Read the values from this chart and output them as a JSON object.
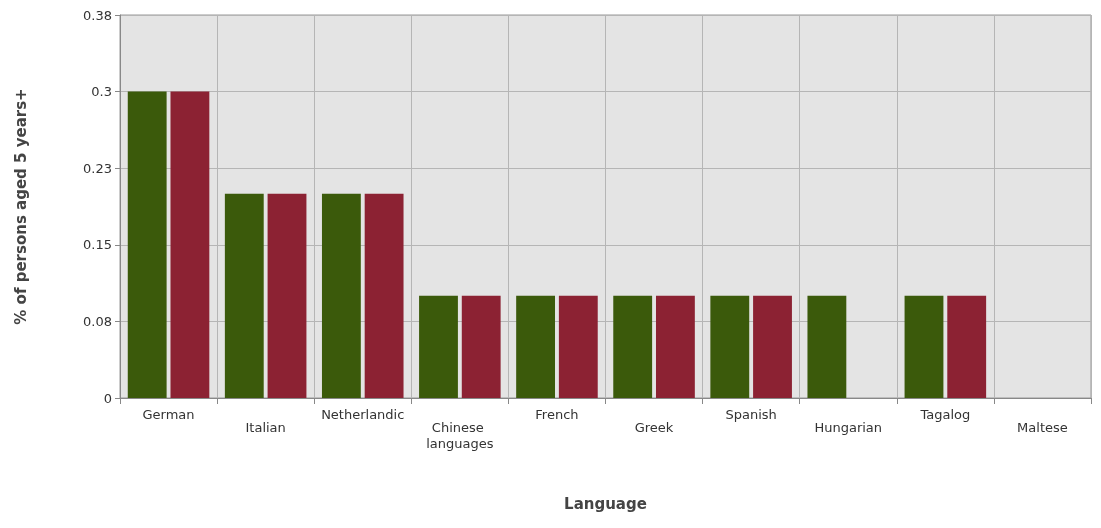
{
  "chart_data": {
    "type": "bar",
    "xlabel": "Language",
    "ylabel": "% of persons aged 5 years+",
    "categories": [
      "German",
      "Italian",
      "Netherlandic",
      "Chinese languages",
      "French",
      "Greek",
      "Spanish",
      "Hungarian",
      "Tagalog",
      "Maltese"
    ],
    "series": [
      {
        "color": "#3b5a0b",
        "values": [
          0.3,
          0.2,
          0.2,
          0.1,
          0.1,
          0.1,
          0.1,
          0.1,
          0.1,
          0
        ]
      },
      {
        "color": "#8c2233",
        "values": [
          0.3,
          0.2,
          0.2,
          0.1,
          0.1,
          0.1,
          0.1,
          0,
          0.1,
          0
        ]
      }
    ],
    "ylim": [
      0,
      0.375
    ],
    "yticks": [
      0,
      {
        "value": 0.075,
        "label": "0.08"
      },
      0.15,
      {
        "value": 0.225,
        "label": "0.23"
      },
      0.3,
      {
        "value": 0.375,
        "label": "0.38"
      }
    ],
    "grid": true
  }
}
